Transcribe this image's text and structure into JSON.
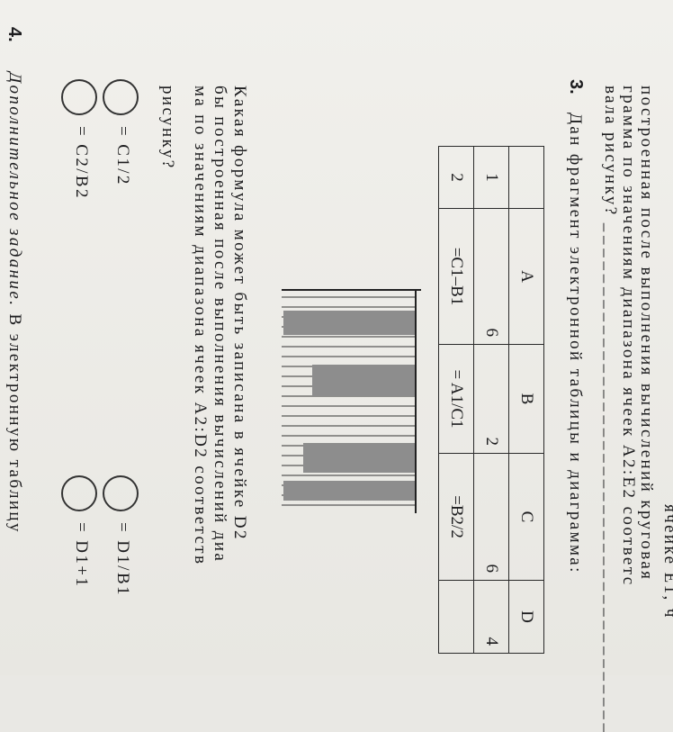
{
  "previous_task": {
    "lines": [
      "ячейке E1, ч",
      "построенная после выполнения вычислений круговая",
      "грамма по значениям диапазона ячеек A2:E2 соответс",
      "вала рисунку?"
    ]
  },
  "task3": {
    "number": "3.",
    "intro": "Дан фрагмент электронной таблицы и диаграмма:",
    "table": {
      "header": [
        "A",
        "B",
        "C",
        "D"
      ],
      "rows": [
        [
          "1",
          "6",
          "2",
          "6",
          "4"
        ],
        [
          "2",
          "=C1–B1",
          "= A1/C1",
          "=B2/2"
        ]
      ]
    },
    "question": [
      "Какая формула может быть записана в ячейке D2",
      "бы построенная после выполнения вычислений диа",
      "ма по значениям диапазона ячеек A2:D2 соответств",
      "рисунку?"
    ],
    "options": [
      "= C1/2",
      "= C2/B2",
      "= D1/B1",
      "= D1+1"
    ]
  },
  "task4": {
    "number": "4.",
    "title": "Дополнительное задание.",
    "text": "В электронную таблицу"
  }
}
